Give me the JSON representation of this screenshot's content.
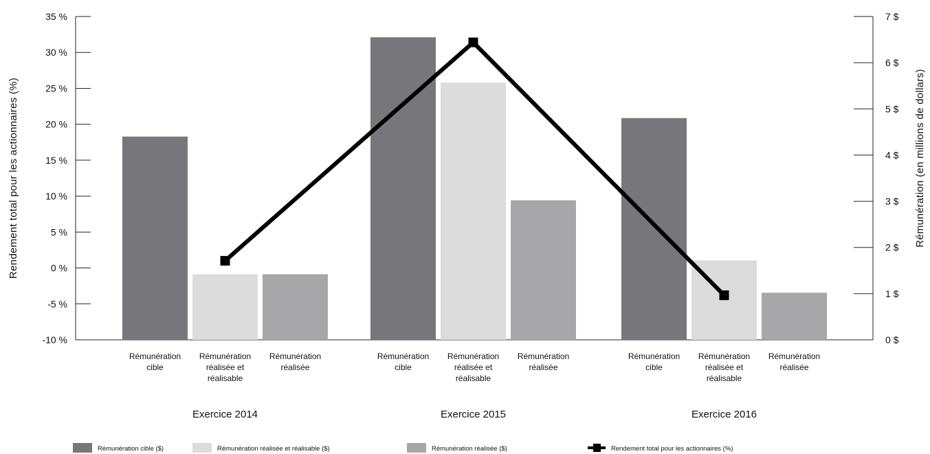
{
  "chart_data": {
    "type": "bar",
    "groups": [
      "Exercice 2014",
      "Exercice 2015",
      "Exercice 2016"
    ],
    "categories": [
      [
        "Rémunération",
        "cible"
      ],
      [
        "Rémunération",
        "réalisée et",
        "réalisable"
      ],
      [
        "Rémunération",
        "réalisée"
      ]
    ],
    "series": [
      {
        "name": "Rémunération cible ($)",
        "color": "#77777b",
        "values": [
          4.4,
          6.55,
          4.8
        ]
      },
      {
        "name": "Rémunération réalisée et réalisable ($)",
        "color": "#dcdcdd",
        "values": [
          1.42,
          5.57,
          1.72
        ]
      },
      {
        "name": "Rémunération réalisée ($)",
        "color": "#a7a7aa",
        "values": [
          1.42,
          3.02,
          1.02
        ]
      }
    ],
    "line_series": {
      "name": "Rendement total pour les actionnaires (%)",
      "color": "#000000",
      "values": [
        1.0,
        31.4,
        -3.8
      ]
    },
    "left_axis": {
      "label": "Rendement total pour les actionnaires (%)",
      "ylim": [
        -10,
        35
      ],
      "ticks": [
        -10,
        -5,
        0,
        5,
        10,
        15,
        20,
        25,
        30,
        35
      ],
      "tick_labels": [
        "-10 %",
        "-5 %",
        "0 %",
        "5 %",
        "10 %",
        "15 %",
        "20 %",
        "25 %",
        "30 %",
        "35 %"
      ]
    },
    "right_axis": {
      "label": "Rémunération (en millions de dollars)",
      "ylim": [
        0,
        7
      ],
      "ticks": [
        0,
        1,
        2,
        3,
        4,
        5,
        6,
        7
      ],
      "tick_labels": [
        "0 $",
        "1 $",
        "2 $",
        "3 $",
        "4 $",
        "5 $",
        "6 $",
        "7 $"
      ]
    },
    "grid": false,
    "legend_position": "bottom"
  }
}
